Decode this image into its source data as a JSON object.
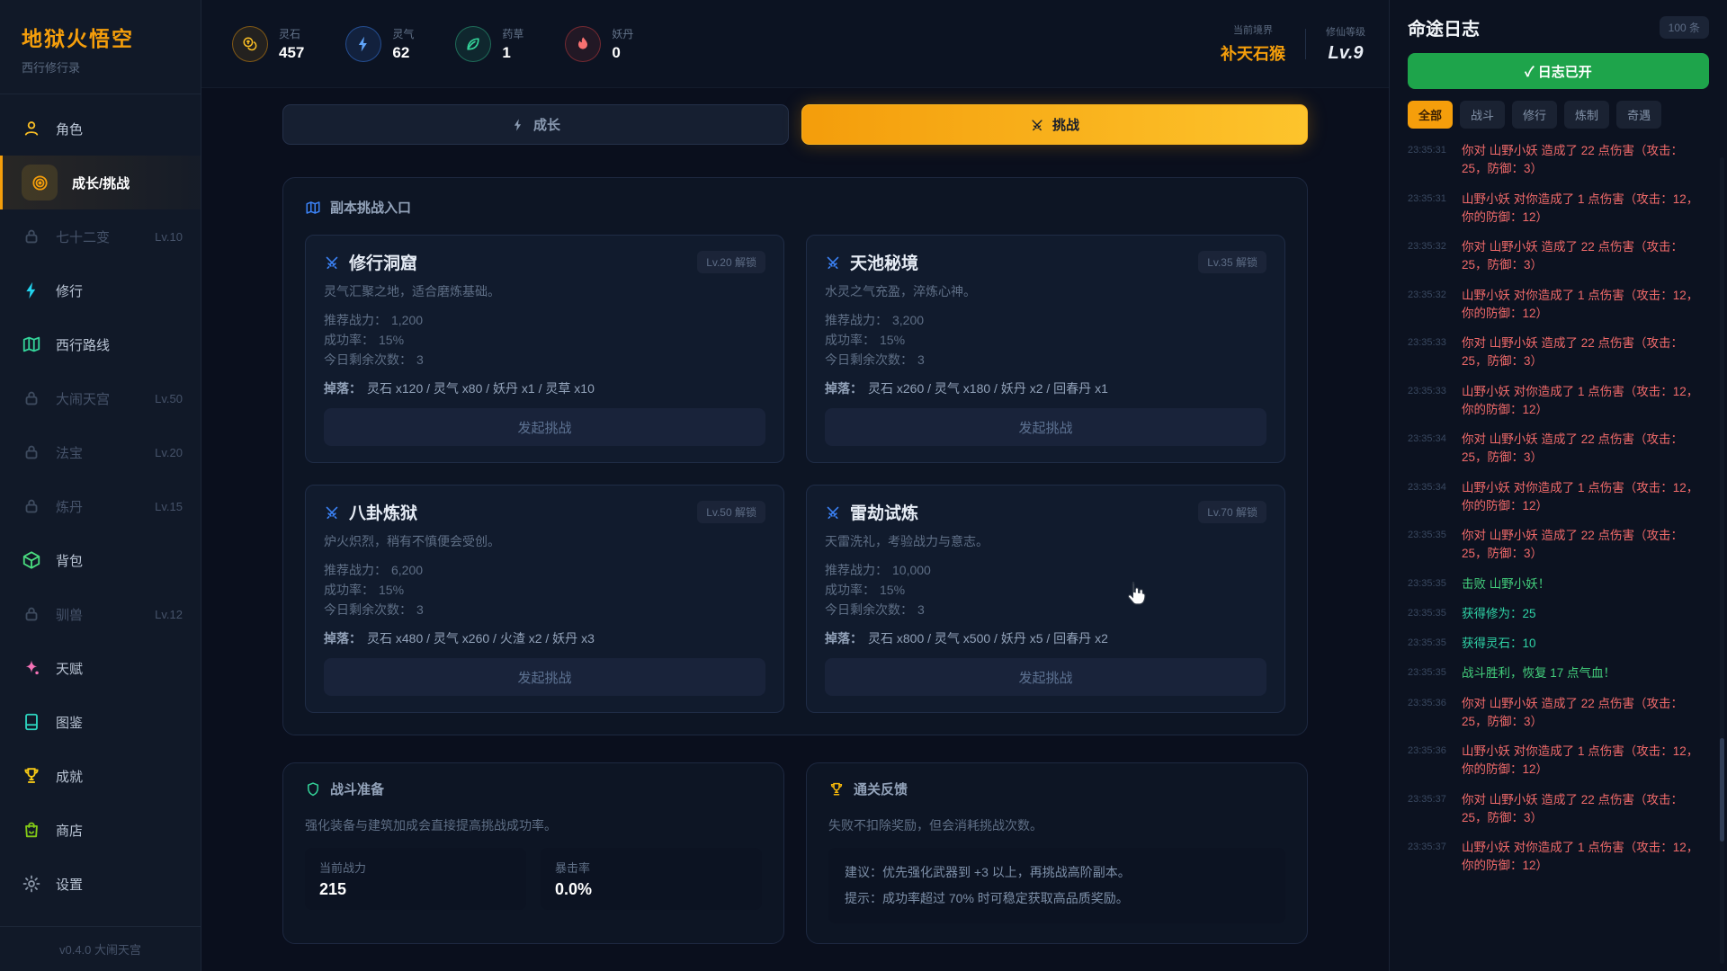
{
  "app": {
    "title": "地狱火悟空",
    "subtitle": "西行修行录",
    "version": "v0.4.0 大闹天宫"
  },
  "accents": {
    "orange": "#f59e0b",
    "tab_gradient_end": "#fdc42c",
    "green_button": "#1ea44b",
    "log_damage": "#f16a6a",
    "log_victory": "#43cf7c",
    "log_reward": "#2fd3a6",
    "card_icon_blue": "#3b82f6",
    "realm_orange": "#f59e0b"
  },
  "sidebar": {
    "items": [
      {
        "label": "角色",
        "icon": "user",
        "color": "#fbbf24"
      },
      {
        "label": "成长/挑战",
        "icon": "target",
        "color": "#f59e0b",
        "active": true
      },
      {
        "label": "七十二变",
        "icon": "lock",
        "locked": true,
        "lock": "Lv.10"
      },
      {
        "label": "修行",
        "icon": "bolt",
        "color": "#22d3ee"
      },
      {
        "label": "西行路线",
        "icon": "map",
        "color": "#34d399"
      },
      {
        "label": "大闹天宫",
        "icon": "lock",
        "locked": true,
        "lock": "Lv.50"
      },
      {
        "label": "法宝",
        "icon": "lock",
        "locked": true,
        "lock": "Lv.20"
      },
      {
        "label": "炼丹",
        "icon": "lock",
        "locked": true,
        "lock": "Lv.15"
      },
      {
        "label": "背包",
        "icon": "cube",
        "color": "#4ade80"
      },
      {
        "label": "驯兽",
        "icon": "lock",
        "locked": true,
        "lock": "Lv.12"
      },
      {
        "label": "天赋",
        "icon": "talent",
        "color": "#f472b6"
      },
      {
        "label": "图鉴",
        "icon": "book",
        "color": "#2dd4bf"
      },
      {
        "label": "成就",
        "icon": "trophy",
        "color": "#facc15"
      },
      {
        "label": "商店",
        "icon": "bag",
        "color": "#84cc16"
      },
      {
        "label": "设置",
        "icon": "gear",
        "color": "#8b97a8"
      }
    ]
  },
  "topbar": {
    "resources": [
      {
        "name": "灵石",
        "value": "457",
        "icon": "coin",
        "tone": "gold"
      },
      {
        "name": "灵气",
        "value": "62",
        "icon": "bolt",
        "tone": "blue"
      },
      {
        "name": "药草",
        "value": "1",
        "icon": "leaf",
        "tone": "green"
      },
      {
        "name": "妖丹",
        "value": "0",
        "icon": "flame",
        "tone": "red"
      }
    ],
    "realm": {
      "label": "当前境界",
      "value": "补天石猴"
    },
    "level": {
      "label": "修仙等级",
      "value": "Lv.9"
    }
  },
  "tabs": [
    {
      "label": "成长",
      "icon": "bolt"
    },
    {
      "label": "挑战",
      "icon": "swords",
      "active": true
    }
  ],
  "dungeon_panel": {
    "title": "副本挑战入口",
    "labels": {
      "power": "推荐战力：",
      "rate": "成功率：",
      "times": "今日剩余次数：",
      "drops": "掉落：",
      "button": "发起挑战"
    },
    "cards": [
      {
        "title": "修行洞窟",
        "unlock": "Lv.20 解锁",
        "desc": "灵气汇聚之地，适合磨炼基础。",
        "power": "1,200",
        "rate": "15%",
        "times": "3",
        "drops": "灵石 x120 / 灵气 x80 / 妖丹 x1 / 灵草 x10"
      },
      {
        "title": "天池秘境",
        "unlock": "Lv.35 解锁",
        "desc": "水灵之气充盈，淬炼心神。",
        "power": "3,200",
        "rate": "15%",
        "times": "3",
        "drops": "灵石 x260 / 灵气 x180 / 妖丹 x2 / 回春丹 x1"
      },
      {
        "title": "八卦炼狱",
        "unlock": "Lv.50 解锁",
        "desc": "炉火炽烈，稍有不慎便会受创。",
        "power": "6,200",
        "rate": "15%",
        "times": "3",
        "drops": "灵石 x480 / 灵气 x260 / 火渣 x2 / 妖丹 x3"
      },
      {
        "title": "雷劫试炼",
        "unlock": "Lv.70 解锁",
        "desc": "天雷洗礼，考验战力与意志。",
        "power": "10,000",
        "rate": "15%",
        "times": "3",
        "drops": "灵石 x800 / 灵气 x500 / 妖丹 x5 / 回春丹 x2"
      }
    ]
  },
  "prep_panel": {
    "title": "战斗准备",
    "desc": "强化装备与建筑加成会直接提高挑战成功率。",
    "stats": [
      {
        "label": "当前战力",
        "value": "215"
      },
      {
        "label": "暴击率",
        "value": "0.0%"
      }
    ]
  },
  "feedback_panel": {
    "title": "通关反馈",
    "desc": "失败不扣除奖励，但会消耗挑战次数。",
    "tips": [
      "建议：优先强化武器到 +3 以上，再挑战高阶副本。",
      "提示：成功率超过 70% 时可稳定获取高品质奖励。"
    ]
  },
  "log_panel": {
    "title": "命途日志",
    "count": "100 条",
    "toggle": "✓ 日志已开",
    "filters": [
      {
        "label": "全部",
        "active": true
      },
      {
        "label": "战斗"
      },
      {
        "label": "修行"
      },
      {
        "label": "炼制"
      },
      {
        "label": "奇遇"
      }
    ],
    "entries": [
      {
        "time": "23:35:31",
        "type": "damage",
        "text": "你对 山野小妖 造成了 22 点伤害（攻击：25，防御：3）"
      },
      {
        "time": "23:35:31",
        "type": "damage",
        "text": "山野小妖 对你造成了 1 点伤害（攻击：12，你的防御：12）"
      },
      {
        "time": "23:35:32",
        "type": "damage",
        "text": "你对 山野小妖 造成了 22 点伤害（攻击：25，防御：3）"
      },
      {
        "time": "23:35:32",
        "type": "damage",
        "text": "山野小妖 对你造成了 1 点伤害（攻击：12，你的防御：12）"
      },
      {
        "time": "23:35:33",
        "type": "damage",
        "text": "你对 山野小妖 造成了 22 点伤害（攻击：25，防御：3）"
      },
      {
        "time": "23:35:33",
        "type": "damage",
        "text": "山野小妖 对你造成了 1 点伤害（攻击：12，你的防御：12）"
      },
      {
        "time": "23:35:34",
        "type": "damage",
        "text": "你对 山野小妖 造成了 22 点伤害（攻击：25，防御：3）"
      },
      {
        "time": "23:35:34",
        "type": "damage",
        "text": "山野小妖 对你造成了 1 点伤害（攻击：12，你的防御：12）"
      },
      {
        "time": "23:35:35",
        "type": "damage",
        "text": "你对 山野小妖 造成了 22 点伤害（攻击：25，防御：3）"
      },
      {
        "time": "23:35:35",
        "type": "victory",
        "text": "击败 山野小妖！"
      },
      {
        "time": "23:35:35",
        "type": "reward",
        "text": "获得修为：25"
      },
      {
        "time": "23:35:35",
        "type": "reward",
        "text": "获得灵石：10"
      },
      {
        "time": "23:35:35",
        "type": "victory",
        "text": "战斗胜利，恢复 17 点气血！"
      },
      {
        "time": "23:35:36",
        "type": "damage",
        "text": "你对 山野小妖 造成了 22 点伤害（攻击：25，防御：3）"
      },
      {
        "time": "23:35:36",
        "type": "damage",
        "text": "山野小妖 对你造成了 1 点伤害（攻击：12，你的防御：12）"
      },
      {
        "time": "23:35:37",
        "type": "damage",
        "text": "你对 山野小妖 造成了 22 点伤害（攻击：25，防御：3）"
      },
      {
        "time": "23:35:37",
        "type": "damage",
        "text": "山野小妖 对你造成了 1 点伤害（攻击：12，你的防御：12）"
      }
    ]
  }
}
